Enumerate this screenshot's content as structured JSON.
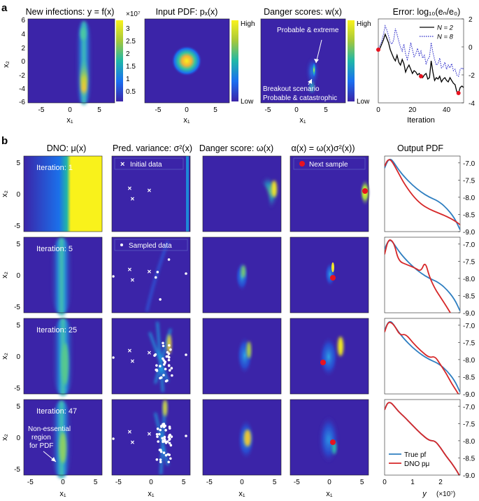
{
  "panel_letters": {
    "a": "a",
    "b": "b"
  },
  "colors": {
    "cm_low": "#3b24a8",
    "cm_mid_blue": "#1a6ff0",
    "cm_teal": "#1fb7a8",
    "cm_yellow": "#f9f21b",
    "curve_true": "#2f7fc1",
    "curve_dno": "#d62728",
    "sample_red": "#e8121f",
    "error_N2": "#000000",
    "error_N8": "#2525c8"
  },
  "row_a": {
    "titles": {
      "infections": "New infections: y = f(x)",
      "input_pdf": "Input PDF: pₓ(x)",
      "danger": "Danger scores: w(x)",
      "error": "Error: log₁₀(eₙ/e₀)"
    },
    "x1_label": "x₁",
    "x2_label": "x₂",
    "x_ticks": [
      "-5",
      "0",
      "5"
    ],
    "y_ticks": [
      "6",
      "4",
      "2",
      "0",
      "-2",
      "-4",
      "-6"
    ],
    "infections_colorbar": {
      "exponent": "×10⁷",
      "ticks": [
        "3",
        "2.5",
        "2",
        "1.5",
        "1",
        "0.5"
      ]
    },
    "pdf_colorbar": {
      "high": "High",
      "low": "Low"
    },
    "danger_colorbar": {
      "high": "High",
      "low": "Low"
    },
    "annotations": {
      "probable_extreme": "Probable & extreme",
      "breakout_1": "Breakout scenario",
      "breakout_2": "Probable & catastrophic"
    }
  },
  "row_b": {
    "col_titles": {
      "dno": "DNO: μ(x)",
      "variance": "Pred. variance: σ²(x)",
      "danger": "Danger score: ω(x)",
      "acq": "α(x) = ω(x)σ²(x))",
      "pdf": "Output PDF"
    },
    "iterations": [
      "Iteration: 1",
      "Iteration: 5",
      "Iteration: 25",
      "Iteration: 47"
    ],
    "legends": {
      "initial": "Initial data",
      "next": "Next sample",
      "sampled": "Sampled data"
    },
    "non_essential": [
      "Non-essential",
      "region",
      "for PDF"
    ],
    "x_ticks": [
      "-5",
      "0",
      "5"
    ],
    "y_ticks": [
      "5",
      "0",
      "-5"
    ],
    "x1_label": "x₁",
    "x2_label": "x₂",
    "pdf_y_ticks": [
      "-7.0",
      "-7.5",
      "-8.0",
      "-8.5",
      "-9.0"
    ],
    "pdf_x_ticks": [
      "0",
      "1",
      "2"
    ],
    "pdf_x_label": "y",
    "pdf_x_exponent": "(×10⁷)",
    "pdf_legend": {
      "true": "True pf",
      "dno": "DNO pμ"
    }
  },
  "chart_data": [
    {
      "type": "line",
      "panel": "a-error",
      "title": "Error: log₁₀(eₙ/e₀)",
      "xlabel": "Iteration",
      "ylabel": "",
      "xlim": [
        0,
        50
      ],
      "ylim": [
        -4,
        2
      ],
      "x_ticks": [
        0,
        20,
        40
      ],
      "y_ticks": [
        2,
        0,
        -2,
        -4
      ],
      "legend_position": "top-right",
      "series": [
        {
          "name": "N = 2",
          "style": "solid",
          "x": [
            0,
            1,
            2,
            3,
            4,
            5,
            6,
            7,
            8,
            9,
            10,
            11,
            12,
            13,
            14,
            15,
            16,
            17,
            18,
            19,
            20,
            21,
            22,
            23,
            24,
            25,
            26,
            27,
            28,
            29,
            30,
            31,
            32,
            33,
            34,
            35,
            36,
            37,
            38,
            39,
            40,
            41,
            42,
            43,
            44,
            45,
            46,
            47,
            48,
            49,
            50
          ],
          "values": [
            -0.2,
            -0.1,
            0.2,
            0.5,
            0.9,
            0.6,
            0.3,
            -0.2,
            -0.5,
            -0.8,
            -1.0,
            -0.6,
            -1.1,
            -1.3,
            -0.9,
            -1.2,
            -1.8,
            -1.5,
            -1.3,
            -1.6,
            -1.9,
            -1.7,
            -1.8,
            -2.0,
            -1.9,
            -2.1,
            -2.2,
            -2.0,
            -1.9,
            -2.3,
            -2.2,
            -1.0,
            -1.8,
            -2.4,
            -2.2,
            -2.3,
            -2.1,
            -2.5,
            -2.3,
            -2.2,
            -2.4,
            -2.5,
            -2.2,
            -2.4,
            -2.6,
            -2.7,
            -3.2,
            -3.3,
            -2.9,
            -2.8,
            -2.9
          ]
        },
        {
          "name": "N = 8",
          "style": "dotted",
          "x": [
            0,
            1,
            2,
            3,
            4,
            5,
            6,
            7,
            8,
            9,
            10,
            11,
            12,
            13,
            14,
            15,
            16,
            17,
            18,
            19,
            20,
            21,
            22,
            23,
            24,
            25,
            26,
            27,
            28,
            29,
            30,
            31,
            32,
            33,
            34,
            35,
            36,
            37,
            38,
            39,
            40,
            41,
            42,
            43,
            44,
            45,
            46,
            47,
            48,
            49,
            50
          ],
          "values": [
            -0.1,
            0.1,
            0.4,
            0.9,
            1.5,
            1.2,
            0.8,
            0.3,
            0.2,
            0.5,
            1.3,
            0.9,
            0.4,
            0.0,
            -0.3,
            0.2,
            -0.5,
            -0.9,
            -0.4,
            0.3,
            -0.2,
            -0.7,
            -0.5,
            -0.1,
            -0.6,
            -0.3,
            -0.8,
            -0.6,
            -1.2,
            -0.9,
            -0.7,
            0.3,
            -0.4,
            -0.9,
            -1.3,
            -1.2,
            -0.8,
            -1.5,
            -1.4,
            -1.1,
            -1.6,
            -1.3,
            -1.5,
            -1.2,
            -1.7,
            -1.6,
            -2.0,
            -2.1,
            -1.6,
            -1.5,
            -1.6
          ]
        }
      ],
      "highlight_points": [
        {
          "x": 0,
          "y": -0.2
        },
        {
          "x": 25,
          "y": -2.1
        },
        {
          "x": 47,
          "y": -3.3
        }
      ]
    },
    {
      "type": "line",
      "panel": "b-pdf-iteration-1",
      "xlabel": "y",
      "ylabel": "",
      "xlim": [
        0,
        2.7
      ],
      "ylim": [
        -9.0,
        -6.8
      ],
      "series": [
        {
          "name": "True pf",
          "x": [
            0,
            0.1,
            0.2,
            0.3,
            0.5,
            0.7,
            1.0,
            1.3,
            1.6,
            1.9,
            2.2,
            2.5,
            2.7
          ],
          "values": [
            -7.15,
            -6.95,
            -6.88,
            -6.95,
            -7.2,
            -7.4,
            -7.65,
            -7.85,
            -8.0,
            -8.1,
            -8.3,
            -8.6,
            -8.95
          ]
        },
        {
          "name": "DNO pμ",
          "x": [
            0,
            0.1,
            0.2,
            0.3,
            0.5,
            0.7,
            1.0,
            1.3,
            1.6,
            1.9,
            2.2,
            2.5,
            2.7
          ],
          "values": [
            -7.1,
            -6.92,
            -6.9,
            -7.0,
            -7.3,
            -7.6,
            -7.95,
            -8.2,
            -8.35,
            -8.45,
            -8.55,
            -8.68,
            -8.8
          ]
        }
      ]
    },
    {
      "type": "line",
      "panel": "b-pdf-iteration-5",
      "xlabel": "y",
      "ylabel": "",
      "xlim": [
        0,
        2.7
      ],
      "ylim": [
        -9.0,
        -6.8
      ],
      "series": [
        {
          "name": "True pf",
          "x": [
            0,
            0.1,
            0.2,
            0.3,
            0.5,
            0.7,
            1.0,
            1.3,
            1.6,
            1.9,
            2.2,
            2.5,
            2.7
          ],
          "values": [
            -7.15,
            -6.95,
            -6.88,
            -6.95,
            -7.2,
            -7.4,
            -7.65,
            -7.85,
            -8.0,
            -8.1,
            -8.3,
            -8.6,
            -8.95
          ]
        },
        {
          "name": "DNO pμ",
          "x": [
            0,
            0.1,
            0.2,
            0.35,
            0.5,
            0.8,
            1.1,
            1.3,
            1.45,
            1.6,
            1.8,
            2.0,
            2.2,
            2.35
          ],
          "values": [
            -7.3,
            -6.95,
            -6.85,
            -7.0,
            -7.5,
            -7.6,
            -7.7,
            -7.8,
            -7.5,
            -7.95,
            -8.3,
            -8.55,
            -8.8,
            -9.0
          ]
        }
      ]
    },
    {
      "type": "line",
      "panel": "b-pdf-iteration-25",
      "xlabel": "y",
      "ylabel": "",
      "xlim": [
        0,
        2.7
      ],
      "ylim": [
        -9.0,
        -6.8
      ],
      "series": [
        {
          "name": "True pf",
          "x": [
            0,
            0.1,
            0.2,
            0.3,
            0.5,
            0.7,
            1.0,
            1.3,
            1.6,
            1.9,
            2.2,
            2.5,
            2.7
          ],
          "values": [
            -7.15,
            -6.95,
            -6.88,
            -6.95,
            -7.2,
            -7.4,
            -7.65,
            -7.85,
            -8.0,
            -8.1,
            -8.3,
            -8.6,
            -8.95
          ]
        },
        {
          "name": "DNO pμ",
          "x": [
            0,
            0.1,
            0.2,
            0.35,
            0.55,
            0.75,
            1.0,
            1.3,
            1.6,
            1.8,
            2.0,
            2.2,
            2.4,
            2.6,
            2.7
          ],
          "values": [
            -7.2,
            -6.95,
            -6.9,
            -7.0,
            -7.3,
            -7.25,
            -7.5,
            -7.75,
            -7.95,
            -7.9,
            -8.15,
            -8.4,
            -8.7,
            -8.95,
            -9.1
          ]
        }
      ]
    },
    {
      "type": "line",
      "panel": "b-pdf-iteration-47",
      "xlabel": "y",
      "ylabel": "",
      "xlim": [
        0,
        2.7
      ],
      "ylim": [
        -9.0,
        -6.8
      ],
      "legend_position": "bottom-left",
      "series": [
        {
          "name": "True pf",
          "x": [
            0,
            0.1,
            0.2,
            0.3,
            0.5,
            0.7,
            1.0,
            1.3,
            1.6,
            1.8,
            2.0,
            2.2,
            2.4,
            2.6,
            2.7
          ],
          "values": [
            -7.1,
            -6.9,
            -6.88,
            -6.95,
            -7.15,
            -7.3,
            -7.55,
            -7.8,
            -8.0,
            -8.0,
            -8.2,
            -8.45,
            -8.65,
            -8.9,
            -9.05
          ]
        },
        {
          "name": "DNO pμ",
          "x": [
            0,
            0.1,
            0.2,
            0.3,
            0.5,
            0.7,
            1.0,
            1.3,
            1.6,
            1.8,
            2.0,
            2.2,
            2.4,
            2.6,
            2.7
          ],
          "values": [
            -7.1,
            -6.9,
            -6.88,
            -6.95,
            -7.15,
            -7.3,
            -7.55,
            -7.8,
            -8.0,
            -8.0,
            -8.2,
            -8.45,
            -8.65,
            -8.9,
            -9.05
          ]
        }
      ]
    }
  ]
}
